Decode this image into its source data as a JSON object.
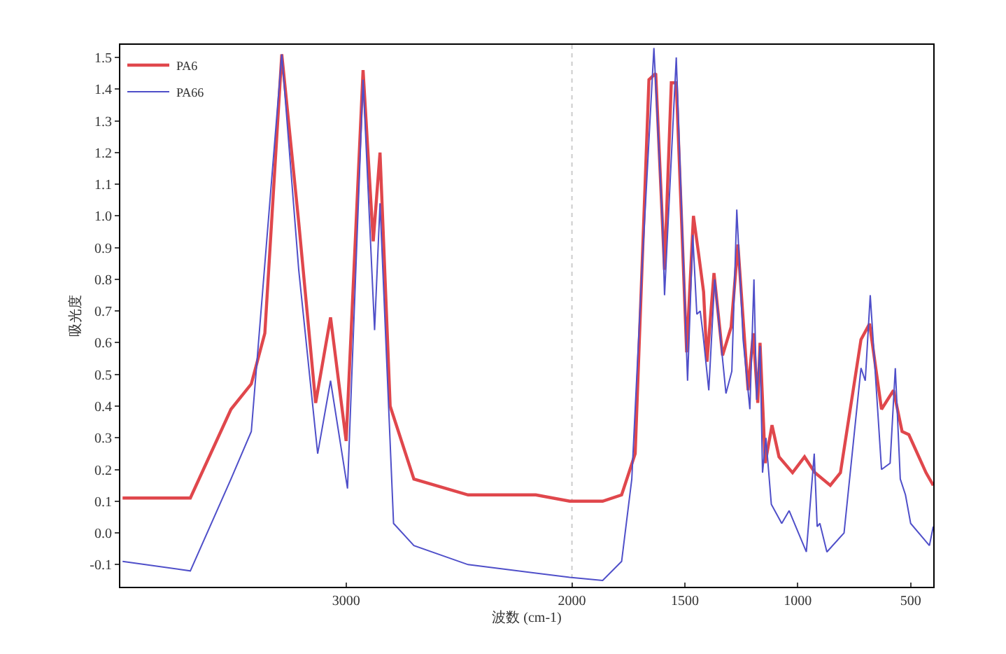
{
  "chart_data": {
    "type": "line",
    "xlabel": "波数 (cm-1)",
    "ylabel": "吸光度",
    "xlim": [
      4000,
      400
    ],
    "xticks": [
      3000,
      2000,
      1500,
      1000,
      500
    ],
    "ylim": [
      -0.17,
      1.54
    ],
    "yticks": [
      -0.1,
      {
        "value": 0,
        "label": "0.0"
      },
      0.1,
      0.2,
      0.3,
      0.4,
      0.5,
      0.6,
      0.7,
      0.8,
      0.9,
      {
        "value": 1,
        "label": "1.0"
      },
      1.1,
      1.2,
      1.3,
      1.4,
      1.5
    ],
    "legend": "top left",
    "grid": false,
    "marker": "none",
    "line_style": "solid",
    "ref_lines": [
      {
        "axis": "x",
        "value": 2000,
        "color": "#cccccc",
        "line_style": "dotted"
      }
    ],
    "series": [
      {
        "name": "PA6",
        "color": "#e0474c",
        "x": [
          3990,
          3690,
          3510,
          3420,
          3360,
          3285,
          3210,
          3135,
          3069,
          3000,
          2925,
          2880,
          2850,
          2805,
          2700,
          2460,
          2160,
          2010,
          1864,
          1780,
          1720,
          1690,
          1659,
          1629,
          1590,
          1560,
          1538,
          1492,
          1462,
          1439,
          1417,
          1402,
          1371,
          1333,
          1295,
          1265,
          1220,
          1197,
          1177,
          1167,
          1144,
          1114,
          1083,
          1023,
          970,
          924,
          856,
          811,
          720,
          682,
          629,
          576,
          538,
          508,
          432,
          400
        ],
        "values": [
          0.11,
          0.11,
          0.39,
          0.47,
          0.63,
          1.51,
          0.98,
          0.41,
          0.68,
          0.29,
          1.46,
          0.92,
          1.2,
          0.4,
          0.17,
          0.12,
          0.12,
          0.1,
          0.1,
          0.12,
          0.25,
          0.83,
          1.43,
          1.45,
          0.83,
          1.42,
          1.42,
          0.57,
          1.0,
          0.88,
          0.76,
          0.54,
          0.82,
          0.56,
          0.65,
          0.91,
          0.45,
          0.63,
          0.41,
          0.6,
          0.22,
          0.34,
          0.24,
          0.19,
          0.24,
          0.19,
          0.15,
          0.19,
          0.61,
          0.66,
          0.39,
          0.45,
          0.32,
          0.31,
          0.19,
          0.15
        ]
      },
      {
        "name": "PA66",
        "color": "#4f4fc9",
        "x": [
          3990,
          3690,
          3510,
          3420,
          3285,
          3210,
          3126,
          3069,
          2994,
          2925,
          2874,
          2850,
          2790,
          2700,
          2460,
          2010,
          1864,
          1780,
          1735,
          1690,
          1637,
          1599,
          1590,
          1538,
          1488,
          1465,
          1447,
          1432,
          1420,
          1394,
          1368,
          1318,
          1292,
          1270,
          1242,
          1212,
          1194,
          1182,
          1167,
          1156,
          1141,
          1117,
          1071,
          1038,
          962,
          927,
          914,
          902,
          871,
          795,
          720,
          701,
          679,
          629,
          591,
          568,
          546,
          523,
          500,
          417,
          400
        ],
        "values": [
          -0.09,
          -0.12,
          0.17,
          0.32,
          1.51,
          0.83,
          0.25,
          0.48,
          0.14,
          1.43,
          0.64,
          1.04,
          0.03,
          -0.04,
          -0.1,
          -0.14,
          -0.15,
          -0.09,
          0.17,
          0.83,
          1.53,
          0.98,
          0.75,
          1.5,
          0.48,
          0.94,
          0.69,
          0.7,
          0.63,
          0.45,
          0.8,
          0.44,
          0.51,
          1.02,
          0.61,
          0.39,
          0.8,
          0.42,
          0.59,
          0.19,
          0.3,
          0.09,
          0.03,
          0.07,
          -0.06,
          0.25,
          0.02,
          0.03,
          -0.06,
          0.0,
          0.52,
          0.48,
          0.75,
          0.2,
          0.22,
          0.52,
          0.17,
          0.12,
          0.03,
          -0.04,
          0.02
        ]
      }
    ]
  }
}
